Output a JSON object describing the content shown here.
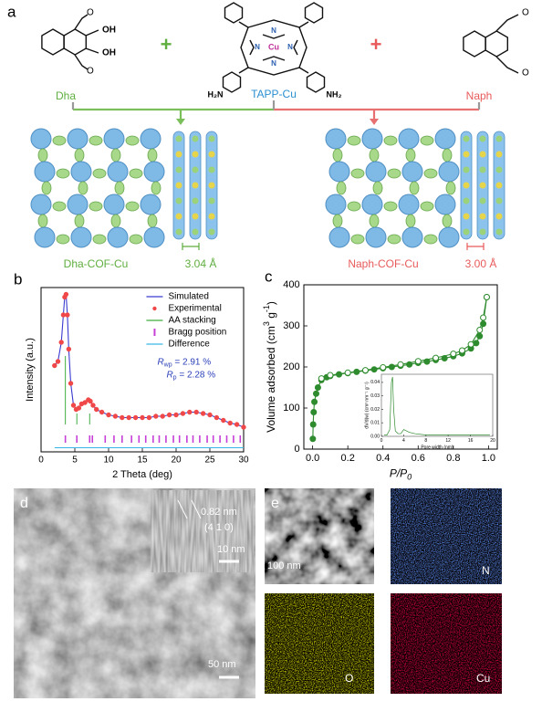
{
  "panel_a": {
    "label": "a",
    "dha": {
      "name": "Dha",
      "hydroxyls": [
        "OH",
        "OH"
      ],
      "carbonyls": [
        "O",
        "O"
      ]
    },
    "tapp": {
      "name": "TAPP-Cu",
      "metal": "Cu",
      "nitrogens": [
        "N",
        "N",
        "N",
        "N"
      ],
      "amines": [
        "H₂N",
        "NH₂"
      ]
    },
    "naph": {
      "name": "Naph",
      "carbonyls": [
        "O",
        "O"
      ]
    },
    "plus": [
      "+",
      "+"
    ],
    "products": [
      {
        "name": "Dha-COF-Cu",
        "spacing": "3.04 Å"
      },
      {
        "name": "Naph-COF-Cu",
        "spacing": "3.00 Å"
      }
    ]
  },
  "chart_data": [
    {
      "type": "line",
      "panel_label": "b",
      "xlabel": "2 Theta (deg)",
      "ylabel": "Intensity (a.u.)",
      "xlim": [
        0,
        30
      ],
      "xticks": [
        0,
        5,
        10,
        15,
        20,
        25,
        30
      ],
      "ylim": [
        -20,
        100
      ],
      "annotations": [
        {
          "symbol": "R",
          "sub": "wp",
          "text": " = 2.91 %"
        },
        {
          "symbol": "R",
          "sub": "p",
          "text": " = 2.28 %"
        }
      ],
      "series": [
        {
          "name": "Simulated",
          "color": "#3a3ad0",
          "style": "line",
          "x": [
            2,
            2.5,
            3,
            3.3,
            3.5,
            3.7,
            3.9,
            4.1,
            4.4,
            4.8,
            5.2,
            5.6,
            6,
            6.5,
            7,
            7.3,
            7.7,
            8.2,
            9,
            10,
            11,
            12,
            13,
            14,
            15,
            16,
            17,
            18,
            19,
            20,
            21,
            22,
            23,
            24,
            25,
            26,
            27,
            28,
            29,
            30
          ],
          "values": [
            43,
            46,
            60,
            80,
            93,
            95,
            80,
            55,
            30,
            14,
            11,
            12,
            15,
            16,
            18,
            17,
            14,
            11,
            9,
            7,
            6,
            5,
            5,
            5,
            5,
            5,
            6,
            6,
            7,
            7,
            8,
            9,
            9,
            8,
            7,
            5,
            3,
            1,
            0,
            -2
          ]
        },
        {
          "name": "Experimental",
          "color": "#f04848",
          "style": "markers",
          "x": [
            2,
            2.5,
            3,
            3.3,
            3.5,
            3.7,
            3.9,
            4.1,
            4.4,
            4.8,
            5.2,
            5.6,
            6,
            6.5,
            7,
            7.3,
            7.7,
            8.2,
            9,
            10,
            11,
            12,
            13,
            14,
            15,
            16,
            17,
            18,
            19,
            20,
            21,
            22,
            23,
            24,
            25,
            26,
            27,
            28,
            29,
            30
          ],
          "values": [
            43,
            46,
            60,
            80,
            93,
            95,
            80,
            55,
            30,
            14,
            11,
            12,
            15,
            16,
            18,
            17,
            14,
            11,
            9,
            7,
            6,
            5,
            5,
            5,
            5,
            5,
            6,
            6,
            7,
            7,
            8,
            9,
            9,
            8,
            7,
            5,
            3,
            1,
            0,
            -2
          ]
        },
        {
          "name": "AA stacking",
          "color": "#3fae3f",
          "style": "sticks",
          "x": [
            3.6,
            5.3,
            7.2
          ],
          "values": [
            50,
            8,
            8
          ]
        },
        {
          "name": "Bragg position",
          "color": "#c63fd6",
          "style": "ticks",
          "x": [
            3.6,
            5.3,
            7.2,
            7.6,
            9.5,
            10.8,
            12,
            13.4,
            14.5,
            15.5,
            16.6,
            17.5,
            18.5,
            19.6,
            20.5,
            21.6,
            22.5,
            23.5,
            24.6,
            25.5,
            26.5,
            27.5,
            28.5,
            29.5
          ]
        },
        {
          "name": "Difference",
          "color": "#37b6e6",
          "style": "line",
          "x": [
            2,
            30
          ],
          "values": [
            -17,
            -17
          ]
        }
      ]
    },
    {
      "type": "line",
      "panel_label": "c",
      "xlabel": "P/P",
      "xlabel_sub": "0",
      "ylabel": [
        "Volume adsorbed (cm",
        "3",
        " g",
        "-1",
        ")"
      ],
      "xlim": [
        -0.05,
        1.05
      ],
      "xticks": [
        {
          "value": 0,
          "label": "0.0"
        },
        0.2,
        0.4,
        0.6,
        0.8,
        {
          "value": 1,
          "label": "1.0"
        }
      ],
      "ylim": [
        0,
        400
      ],
      "yticks": [
        0,
        100,
        200,
        300,
        400
      ],
      "series": [
        {
          "color": "#2e8b2e",
          "style": "line-markers",
          "marker": "filled",
          "x": [
            0.001,
            0.003,
            0.006,
            0.01,
            0.02,
            0.03,
            0.05,
            0.08,
            0.1,
            0.15,
            0.2,
            0.25,
            0.3,
            0.35,
            0.4,
            0.45,
            0.5,
            0.55,
            0.6,
            0.65,
            0.7,
            0.75,
            0.8,
            0.85,
            0.9,
            0.93,
            0.95,
            0.97,
            0.99
          ],
          "values": [
            25,
            60,
            90,
            115,
            135,
            150,
            168,
            175,
            178,
            182,
            185,
            188,
            191,
            194,
            197,
            200,
            203,
            206,
            210,
            213,
            217,
            221,
            226,
            233,
            245,
            258,
            275,
            305,
            370
          ]
        },
        {
          "color": "#2e8b2e",
          "style": "line-markers",
          "marker": "open",
          "x": [
            0.99,
            0.97,
            0.95,
            0.9,
            0.85,
            0.8,
            0.7,
            0.6,
            0.5,
            0.4,
            0.3,
            0.2,
            0.1,
            0.05
          ],
          "values": [
            370,
            320,
            290,
            255,
            240,
            232,
            222,
            214,
            206,
            199,
            192,
            186,
            180,
            172
          ]
        }
      ]
    },
    {
      "type": "line",
      "xlabel": "Pore width (nm)",
      "ylabel": "dV/d(w) (cm³ nm⁻¹ g⁻¹)",
      "xlim": [
        0,
        20
      ],
      "xticks": [
        0,
        4,
        8,
        12,
        16,
        20
      ],
      "ylim": [
        0,
        0.046
      ],
      "yticks": [
        {
          "value": 0,
          "label": "0.00"
        },
        0.01,
        0.02,
        0.03,
        0.04
      ],
      "series": [
        {
          "color": "#2e8b2e",
          "style": "line",
          "x": [
            0.5,
            1,
            1.5,
            1.8,
            2,
            2.2,
            2.5,
            3,
            3.5,
            4,
            5,
            6,
            8,
            10,
            12,
            14,
            16,
            18,
            19.5
          ],
          "values": [
            0.001,
            0.001,
            0.005,
            0.04,
            0.044,
            0.02,
            0.004,
            0.002,
            0.002,
            0.005,
            0.003,
            0.002,
            0.001,
            0.001,
            0.001,
            0.001,
            0.001,
            0.001,
            0.001
          ]
        }
      ]
    }
  ],
  "panel_d": {
    "label": "d",
    "lattice_spacing": "0.82 nm",
    "plane": "(4 1 0)",
    "inset_scale": "10 nm",
    "scale": "50 nm"
  },
  "panel_e": {
    "label": "e",
    "scale": "100 nm",
    "maps": [
      "N",
      "O",
      "Cu"
    ]
  }
}
